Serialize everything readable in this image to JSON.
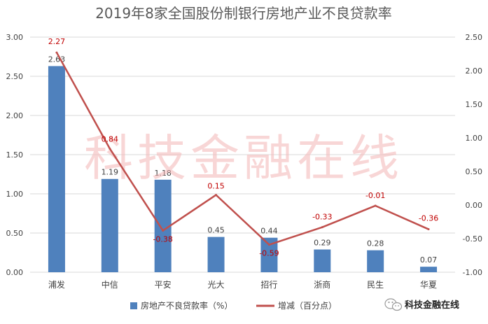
{
  "chart_data": {
    "type": "bar",
    "title": "2019年8家全国股份制银行房地产业不良贷款率",
    "categories": [
      "浦发",
      "中信",
      "平安",
      "光大",
      "招行",
      "浙商",
      "民生",
      "华夏"
    ],
    "series": [
      {
        "name": "房地产不良贷款率（%）",
        "type": "bar",
        "axis": "left",
        "color": "#4f81bd",
        "values": [
          2.63,
          1.19,
          1.18,
          0.45,
          0.44,
          0.29,
          0.28,
          0.07
        ],
        "labels": [
          "2.63",
          "1.19",
          "1.18",
          "0.45",
          "0.44",
          "0.29",
          "0.28",
          "0.07"
        ]
      },
      {
        "name": "增减（百分点）",
        "type": "line",
        "axis": "right",
        "color": "#c0504d",
        "values": [
          2.27,
          0.84,
          -0.38,
          0.15,
          -0.59,
          -0.33,
          -0.01,
          -0.36
        ],
        "labels": [
          "2.27",
          "0.84",
          "-0.38",
          "0.15",
          "-0.59",
          "-0.33",
          "-0.01",
          "-0.36"
        ]
      }
    ],
    "y_left": {
      "min": 0,
      "max": 3,
      "step": 0.5,
      "ticks": [
        "0.00",
        "0.50",
        "1.00",
        "1.50",
        "2.00",
        "2.50",
        "3.00"
      ]
    },
    "y_right": {
      "min": -1,
      "max": 2.5,
      "step": 0.5,
      "ticks": [
        "-1.00",
        "-0.50",
        "0.00",
        "0.50",
        "1.00",
        "1.50",
        "2.00",
        "2.50"
      ]
    },
    "legend_position": "bottom",
    "watermark": "科技金融在线",
    "brand": "科技金融在线"
  }
}
